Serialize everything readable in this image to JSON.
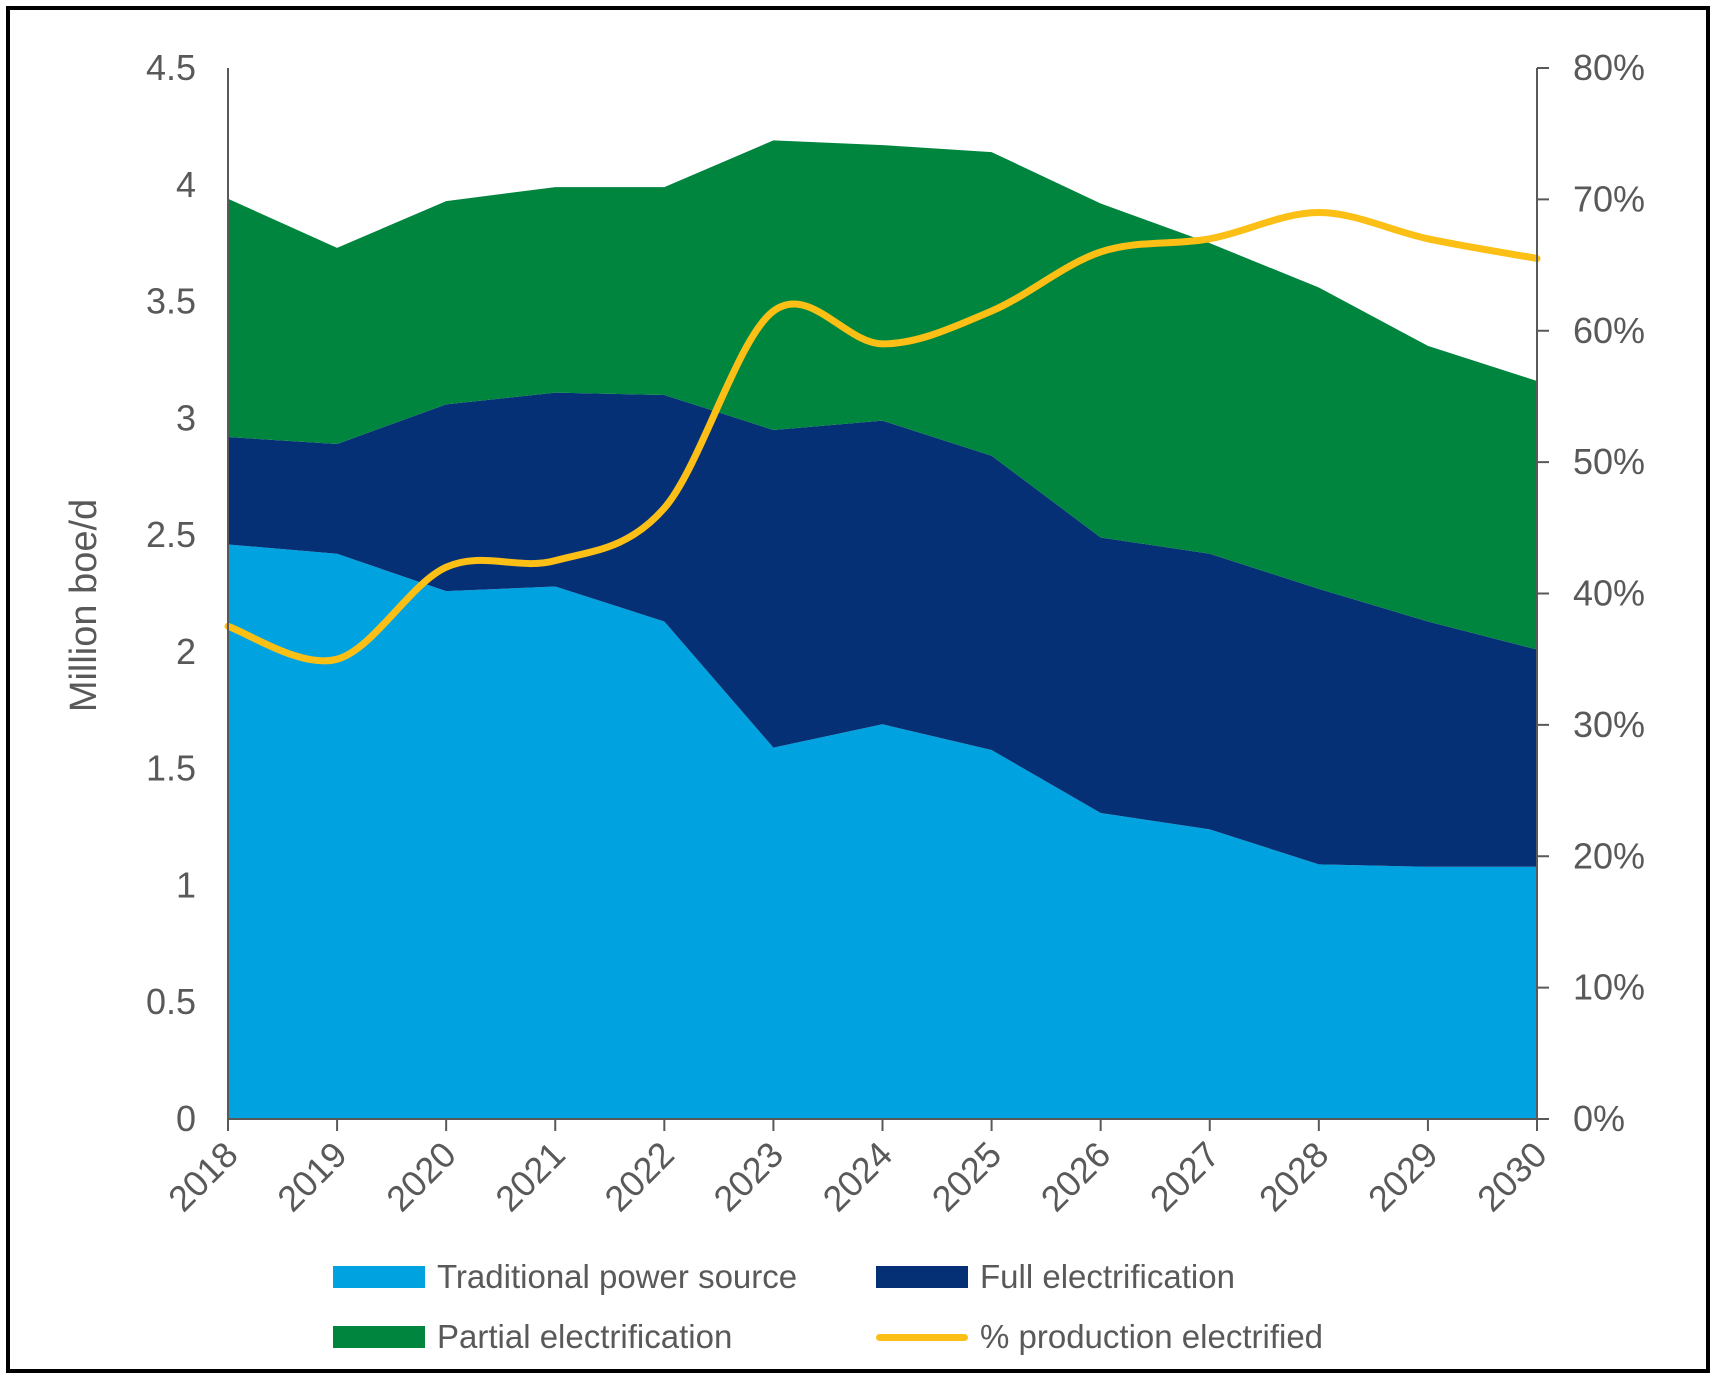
{
  "chart_data": {
    "type": "area",
    "title": "",
    "categories": [
      "2018",
      "2019",
      "2020",
      "2021",
      "2022",
      "2023",
      "2024",
      "2025",
      "2026",
      "2027",
      "2028",
      "2029",
      "2030"
    ],
    "series": [
      {
        "name": "Traditional power source",
        "kind": "stacked-area",
        "color": "#00a3e0",
        "values": [
          2.46,
          2.42,
          2.26,
          2.28,
          2.13,
          1.59,
          1.69,
          1.58,
          1.31,
          1.24,
          1.09,
          1.08,
          1.08
        ]
      },
      {
        "name": "Full electrification",
        "kind": "stacked-area",
        "color": "#063075",
        "values": [
          0.46,
          0.47,
          0.8,
          0.83,
          0.97,
          1.36,
          1.3,
          1.26,
          1.18,
          1.18,
          1.18,
          1.05,
          0.93
        ]
      },
      {
        "name": "Partial electrification",
        "kind": "stacked-area",
        "color": "#00853f",
        "values": [
          1.02,
          0.84,
          0.87,
          0.88,
          0.89,
          1.24,
          1.18,
          1.3,
          1.43,
          1.33,
          1.29,
          1.18,
          1.15
        ]
      },
      {
        "name": "% production electrified",
        "kind": "line",
        "axis": "right",
        "color": "#fbbf15",
        "values": [
          37.5,
          35,
          42,
          42.5,
          46.5,
          61.5,
          59,
          61.5,
          66,
          67,
          69,
          67,
          65.5
        ]
      }
    ],
    "yaxis_left": {
      "label": "Million boe/d",
      "min": 0,
      "max": 4.5,
      "ticks": [
        "0",
        "0.5",
        "1",
        "1.5",
        "2",
        "2.5",
        "3",
        "3.5",
        "4",
        "4.5"
      ]
    },
    "yaxis_right": {
      "label": "",
      "min": 0,
      "max": 80,
      "ticks": [
        "0%",
        "10%",
        "20%",
        "30%",
        "40%",
        "50%",
        "60%",
        "70%",
        "80%"
      ]
    },
    "xlabel": "",
    "grid": false,
    "legend": {
      "placement": "bottom",
      "entries": [
        "Traditional power source",
        "Full electrification",
        "Partial electrification",
        "% production electrified"
      ]
    }
  },
  "legend": {
    "traditional": "Traditional power source",
    "full": "Full electrification",
    "partial": "Partial electrification",
    "pct": "% production electrified"
  },
  "colors": {
    "traditional": "#00a3e0",
    "full": "#063075",
    "partial": "#00853f",
    "pct": "#fbbf15",
    "axis": "#595959"
  }
}
